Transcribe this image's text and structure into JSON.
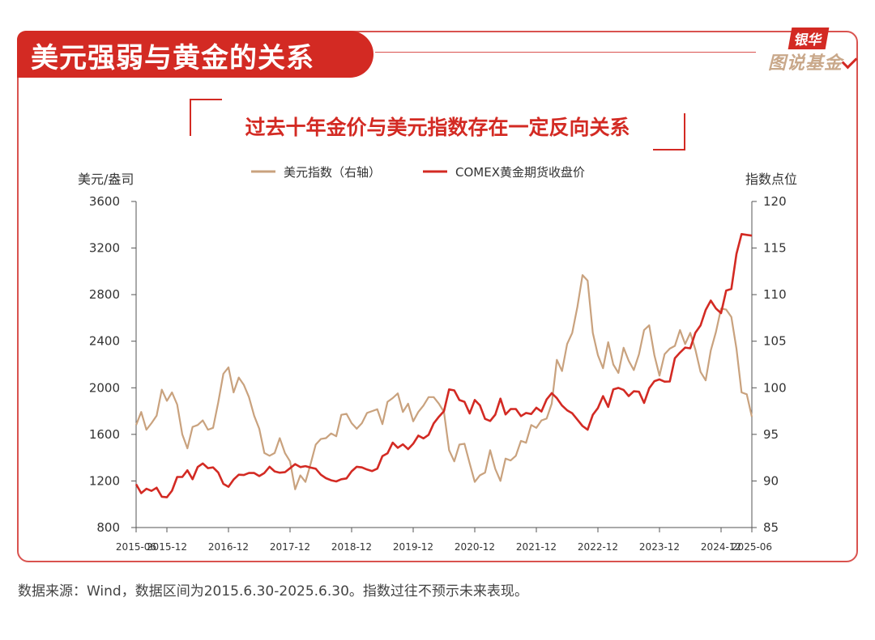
{
  "header": {
    "title": "美元强弱与黄金的关系",
    "logo_top": "银华",
    "logo_bottom": "图说基金"
  },
  "colors": {
    "accent_red": "#d32a23",
    "gold_series": "#c9a27e",
    "frame": "#d9534f"
  },
  "footnote": "数据来源：Wind，数据区间为2015.6.30-2025.6.30。指数过往不预示未来表现。",
  "chart_data": {
    "type": "line",
    "title": "过去十年金价与美元指数存在一定反向关系",
    "ylabel_left": "美元/盎司",
    "ylabel_right": "指数点位",
    "ylim_left": [
      800,
      3600
    ],
    "yticks_left": [
      800,
      1200,
      1600,
      2000,
      2400,
      2800,
      3200,
      3600
    ],
    "ylim_right": [
      85,
      120
    ],
    "yticks_right": [
      85,
      90,
      95,
      100,
      105,
      110,
      115,
      120
    ],
    "xlim": [
      "2015-06",
      "2025-06"
    ],
    "xticks": [
      "2015-06",
      "2015-12",
      "2016-12",
      "2017-12",
      "2018-12",
      "2019-12",
      "2020-12",
      "2021-12",
      "2022-12",
      "2023-12",
      "2024-12",
      "2025-06"
    ],
    "grid": false,
    "legend_position": "top",
    "series": [
      {
        "name": "美元指数（右轴）",
        "axis": "right",
        "color": "#c9a27e",
        "points": [
          [
            "2015-06",
            96.0
          ],
          [
            "2015-07",
            97.4
          ],
          [
            "2015-08",
            95.5
          ],
          [
            "2015-09",
            96.2
          ],
          [
            "2015-10",
            97.0
          ],
          [
            "2015-11",
            99.8
          ],
          [
            "2015-12",
            98.6
          ],
          [
            "2016-01",
            99.5
          ],
          [
            "2016-02",
            98.2
          ],
          [
            "2016-03",
            95.0
          ],
          [
            "2016-04",
            93.5
          ],
          [
            "2016-05",
            95.8
          ],
          [
            "2016-06",
            96.0
          ],
          [
            "2016-07",
            96.5
          ],
          [
            "2016-08",
            95.5
          ],
          [
            "2016-09",
            95.7
          ],
          [
            "2016-10",
            98.4
          ],
          [
            "2016-11",
            101.5
          ],
          [
            "2016-12",
            102.2
          ],
          [
            "2017-01",
            99.5
          ],
          [
            "2017-02",
            101.1
          ],
          [
            "2017-03",
            100.3
          ],
          [
            "2017-04",
            99.0
          ],
          [
            "2017-05",
            97.0
          ],
          [
            "2017-06",
            95.6
          ],
          [
            "2017-07",
            93.0
          ],
          [
            "2017-08",
            92.7
          ],
          [
            "2017-09",
            93.0
          ],
          [
            "2017-10",
            94.6
          ],
          [
            "2017-11",
            93.0
          ],
          [
            "2017-12",
            92.1
          ],
          [
            "2018-01",
            89.1
          ],
          [
            "2018-02",
            90.6
          ],
          [
            "2018-03",
            89.9
          ],
          [
            "2018-04",
            91.8
          ],
          [
            "2018-05",
            93.9
          ],
          [
            "2018-06",
            94.5
          ],
          [
            "2018-07",
            94.6
          ],
          [
            "2018-08",
            95.1
          ],
          [
            "2018-09",
            94.8
          ],
          [
            "2018-10",
            97.1
          ],
          [
            "2018-11",
            97.2
          ],
          [
            "2018-12",
            96.2
          ],
          [
            "2019-01",
            95.6
          ],
          [
            "2019-02",
            96.2
          ],
          [
            "2019-03",
            97.3
          ],
          [
            "2019-04",
            97.5
          ],
          [
            "2019-05",
            97.7
          ],
          [
            "2019-06",
            96.1
          ],
          [
            "2019-07",
            98.5
          ],
          [
            "2019-08",
            98.9
          ],
          [
            "2019-09",
            99.4
          ],
          [
            "2019-10",
            97.4
          ],
          [
            "2019-11",
            98.3
          ],
          [
            "2019-12",
            96.4
          ],
          [
            "2020-01",
            97.4
          ],
          [
            "2020-02",
            98.1
          ],
          [
            "2020-03",
            99.0
          ],
          [
            "2020-04",
            99.0
          ],
          [
            "2020-05",
            98.3
          ],
          [
            "2020-06",
            97.4
          ],
          [
            "2020-07",
            93.3
          ],
          [
            "2020-08",
            92.1
          ],
          [
            "2020-09",
            93.9
          ],
          [
            "2020-10",
            94.0
          ],
          [
            "2020-11",
            91.9
          ],
          [
            "2020-12",
            89.9
          ],
          [
            "2021-01",
            90.6
          ],
          [
            "2021-02",
            90.9
          ],
          [
            "2021-03",
            93.3
          ],
          [
            "2021-04",
            91.3
          ],
          [
            "2021-05",
            90.0
          ],
          [
            "2021-06",
            92.4
          ],
          [
            "2021-07",
            92.2
          ],
          [
            "2021-08",
            92.7
          ],
          [
            "2021-09",
            94.3
          ],
          [
            "2021-10",
            94.1
          ],
          [
            "2021-11",
            96.0
          ],
          [
            "2021-12",
            95.7
          ],
          [
            "2022-01",
            96.5
          ],
          [
            "2022-02",
            96.7
          ],
          [
            "2022-03",
            98.3
          ],
          [
            "2022-04",
            103.0
          ],
          [
            "2022-05",
            101.8
          ],
          [
            "2022-06",
            104.7
          ],
          [
            "2022-07",
            105.9
          ],
          [
            "2022-08",
            108.7
          ],
          [
            "2022-09",
            112.1
          ],
          [
            "2022-10",
            111.5
          ],
          [
            "2022-11",
            105.9
          ],
          [
            "2022-12",
            103.5
          ],
          [
            "2023-01",
            102.1
          ],
          [
            "2023-02",
            104.9
          ],
          [
            "2023-03",
            102.5
          ],
          [
            "2023-04",
            101.6
          ],
          [
            "2023-05",
            104.3
          ],
          [
            "2023-06",
            102.9
          ],
          [
            "2023-07",
            101.9
          ],
          [
            "2023-08",
            103.6
          ],
          [
            "2023-09",
            106.2
          ],
          [
            "2023-10",
            106.7
          ],
          [
            "2023-11",
            103.5
          ],
          [
            "2023-12",
            101.3
          ],
          [
            "2024-01",
            103.6
          ],
          [
            "2024-02",
            104.2
          ],
          [
            "2024-03",
            104.5
          ],
          [
            "2024-04",
            106.2
          ],
          [
            "2024-05",
            104.7
          ],
          [
            "2024-06",
            105.9
          ],
          [
            "2024-07",
            104.1
          ],
          [
            "2024-08",
            101.7
          ],
          [
            "2024-09",
            100.8
          ],
          [
            "2024-10",
            104.0
          ],
          [
            "2024-11",
            106.0
          ],
          [
            "2024-12",
            108.5
          ],
          [
            "2025-01",
            108.4
          ],
          [
            "2025-02",
            107.6
          ],
          [
            "2025-03",
            104.2
          ],
          [
            "2025-04",
            99.5
          ],
          [
            "2025-05",
            99.3
          ],
          [
            "2025-06",
            96.9
          ]
        ]
      },
      {
        "name": "COMEX黄金期货收盘价",
        "axis": "left",
        "color": "#d32a23",
        "points": [
          [
            "2015-06",
            1172
          ],
          [
            "2015-07",
            1095
          ],
          [
            "2015-08",
            1133
          ],
          [
            "2015-09",
            1115
          ],
          [
            "2015-10",
            1142
          ],
          [
            "2015-11",
            1065
          ],
          [
            "2015-12",
            1060
          ],
          [
            "2016-01",
            1116
          ],
          [
            "2016-02",
            1234
          ],
          [
            "2016-03",
            1234
          ],
          [
            "2016-04",
            1291
          ],
          [
            "2016-05",
            1215
          ],
          [
            "2016-06",
            1320
          ],
          [
            "2016-07",
            1350
          ],
          [
            "2016-08",
            1310
          ],
          [
            "2016-09",
            1316
          ],
          [
            "2016-10",
            1273
          ],
          [
            "2016-11",
            1175
          ],
          [
            "2016-12",
            1150
          ],
          [
            "2017-01",
            1212
          ],
          [
            "2017-02",
            1254
          ],
          [
            "2017-03",
            1251
          ],
          [
            "2017-04",
            1268
          ],
          [
            "2017-05",
            1268
          ],
          [
            "2017-06",
            1242
          ],
          [
            "2017-07",
            1268
          ],
          [
            "2017-08",
            1322
          ],
          [
            "2017-09",
            1282
          ],
          [
            "2017-10",
            1271
          ],
          [
            "2017-11",
            1275
          ],
          [
            "2017-12",
            1309
          ],
          [
            "2018-01",
            1345
          ],
          [
            "2018-02",
            1319
          ],
          [
            "2018-03",
            1327
          ],
          [
            "2018-04",
            1315
          ],
          [
            "2018-05",
            1305
          ],
          [
            "2018-06",
            1254
          ],
          [
            "2018-07",
            1224
          ],
          [
            "2018-08",
            1206
          ],
          [
            "2018-09",
            1196
          ],
          [
            "2018-10",
            1215
          ],
          [
            "2018-11",
            1222
          ],
          [
            "2018-12",
            1283
          ],
          [
            "2019-01",
            1322
          ],
          [
            "2019-02",
            1316
          ],
          [
            "2019-03",
            1298
          ],
          [
            "2019-04",
            1285
          ],
          [
            "2019-05",
            1306
          ],
          [
            "2019-06",
            1413
          ],
          [
            "2019-07",
            1437
          ],
          [
            "2019-08",
            1529
          ],
          [
            "2019-09",
            1485
          ],
          [
            "2019-10",
            1514
          ],
          [
            "2019-11",
            1473
          ],
          [
            "2019-12",
            1520
          ],
          [
            "2020-01",
            1589
          ],
          [
            "2020-02",
            1566
          ],
          [
            "2020-03",
            1596
          ],
          [
            "2020-04",
            1694
          ],
          [
            "2020-05",
            1751
          ],
          [
            "2020-06",
            1800
          ],
          [
            "2020-07",
            1986
          ],
          [
            "2020-08",
            1978
          ],
          [
            "2020-09",
            1895
          ],
          [
            "2020-10",
            1880
          ],
          [
            "2020-11",
            1780
          ],
          [
            "2020-12",
            1895
          ],
          [
            "2021-01",
            1850
          ],
          [
            "2021-02",
            1733
          ],
          [
            "2021-03",
            1715
          ],
          [
            "2021-04",
            1769
          ],
          [
            "2021-05",
            1907
          ],
          [
            "2021-06",
            1771
          ],
          [
            "2021-07",
            1817
          ],
          [
            "2021-08",
            1818
          ],
          [
            "2021-09",
            1757
          ],
          [
            "2021-10",
            1784
          ],
          [
            "2021-11",
            1775
          ],
          [
            "2021-12",
            1829
          ],
          [
            "2022-01",
            1796
          ],
          [
            "2022-02",
            1900
          ],
          [
            "2022-03",
            1954
          ],
          [
            "2022-04",
            1911
          ],
          [
            "2022-05",
            1848
          ],
          [
            "2022-06",
            1807
          ],
          [
            "2022-07",
            1781
          ],
          [
            "2022-08",
            1726
          ],
          [
            "2022-09",
            1672
          ],
          [
            "2022-10",
            1640
          ],
          [
            "2022-11",
            1768
          ],
          [
            "2022-12",
            1826
          ],
          [
            "2023-01",
            1928
          ],
          [
            "2023-02",
            1836
          ],
          [
            "2023-03",
            1986
          ],
          [
            "2023-04",
            1999
          ],
          [
            "2023-05",
            1982
          ],
          [
            "2023-06",
            1929
          ],
          [
            "2023-07",
            1970
          ],
          [
            "2023-08",
            1966
          ],
          [
            "2023-09",
            1870
          ],
          [
            "2023-10",
            1996
          ],
          [
            "2023-11",
            2057
          ],
          [
            "2023-12",
            2072
          ],
          [
            "2024-01",
            2053
          ],
          [
            "2024-02",
            2054
          ],
          [
            "2024-03",
            2254
          ],
          [
            "2024-04",
            2302
          ],
          [
            "2024-05",
            2345
          ],
          [
            "2024-06",
            2339
          ],
          [
            "2024-07",
            2473
          ],
          [
            "2024-08",
            2536
          ],
          [
            "2024-09",
            2668
          ],
          [
            "2024-10",
            2749
          ],
          [
            "2024-11",
            2681
          ],
          [
            "2024-12",
            2641
          ],
          [
            "2025-01",
            2835
          ],
          [
            "2025-02",
            2849
          ],
          [
            "2025-03",
            3150
          ],
          [
            "2025-04",
            3320
          ],
          [
            "2025-05",
            3313
          ],
          [
            "2025-06",
            3307
          ]
        ]
      }
    ]
  }
}
